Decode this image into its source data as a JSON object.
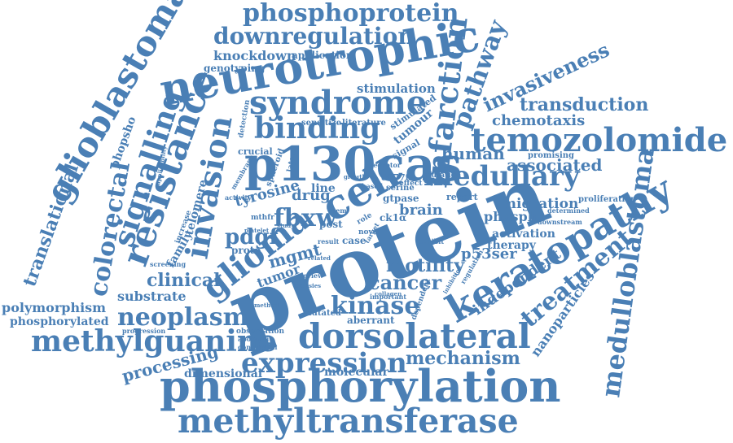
{
  "colors": {
    "word": "#4a7fb5",
    "background": "#ffffff"
  },
  "words": {
    "protein": "protein",
    "phosphorylation": "phosphorylation",
    "methyltransferase": "methyltransferase",
    "p130cas": "p130cas",
    "neurotrophic": "neurotrophic",
    "temozolomide": "temozolomide",
    "keratopathy": "keratopathy",
    "dorsolateral": "dorsolateral",
    "glioblastoma": "glioblastoma",
    "medulloblastoma": "medulloblastoma",
    "methylguanine": "methylguanine",
    "expression": "expression",
    "phosphoprotein": "phosphoprotein",
    "downregulation": "downregulation",
    "syndrome": "syndrome",
    "binding": "binding",
    "infarction": "infarction",
    "pathway": "pathway",
    "resistance": "resistance",
    "signalling": "signalling",
    "invasion": "invasion",
    "glioma": "glioma",
    "cell": "cell",
    "medullary": "medullary",
    "neoplasm": "neoplasm",
    "colorectal": "colorectal",
    "kinase": "kinase",
    "fbxw": "fbxw",
    "pdgf": "pdgf",
    "treatment": "treatment",
    "transduction": "transduction",
    "invasiveness": "invasiveness",
    "chemotaxis": "chemotaxis",
    "human": "human",
    "associated": "associated",
    "translational": "translational",
    "cancer": "cancer",
    "motility": "motility",
    "mechanism": "mechanism",
    "processing": "processing",
    "clinical": "clinical",
    "substrate": "substrate",
    "polymorphism": "polymorphism",
    "phosphorylated": "phosphorylated",
    "knockdown": "knockdown",
    "application": "application",
    "genotyping": "genotyping",
    "stimulation": "stimulation",
    "tyrosine": "tyrosine",
    "drug": "drug",
    "line": "line",
    "brain": "brain",
    "mgmt": "mgmt",
    "nanoparticles": "nanoparticles",
    "independent": "independent",
    "migration": "migration",
    "phospho": "phospho",
    "activation": "activation",
    "therapy": "therapy",
    "p53ser": "p53ser",
    "family": "family",
    "phopsho": "phopsho",
    "tumour": "tumour",
    "telomere": "telomere",
    "molecular": "molecular",
    "dimensional": "dimensional",
    "aberrant": "aberrant",
    "mutated": "mutated",
    "tumor": "tumor",
    "case": "case",
    "report": "report",
    "proliferation": "proliferation",
    "promising": "promising",
    "gtpase": "gtpase",
    "serine": "serine",
    "ck1a": "ck1α",
    "signal": "signal",
    "stimulated": "stimulated",
    "literature": "literature",
    "sensitize": "sensitize",
    "crucial": "crucial",
    "detection": "detection",
    "proto": "proto",
    "post": "post",
    "screening": "screening",
    "increase": "increase",
    "progression": "progression",
    "observation": "observation",
    "apoptosis": "apoptosis",
    "conclusion": "conclusion",
    "mthfr": "mthfr",
    "mutation": "mutation",
    "effect": "effect",
    "based": "based",
    "c677t": "c677t",
    "exhibit": "exhibit",
    "result": "result",
    "novel": "novel",
    "target": "target",
    "role": "role",
    "important": "important",
    "review": "review",
    "biopsies": "biopsies",
    "growth": "growth",
    "downstream": "downstream",
    "determined": "determined",
    "study": "study",
    "spheroid": "spheroid",
    "lateral": "lateral",
    "membrane": "membrane",
    "activity": "activity",
    "applicability": "applicability",
    "receptor": "receptor",
    "collagen": "collagen",
    "dependent": "dependent",
    "regulation": "regulation",
    "inhibition": "inhibition",
    "stem": "stem",
    "platelet": "platelet",
    "method": "method",
    "related": "related"
  }
}
